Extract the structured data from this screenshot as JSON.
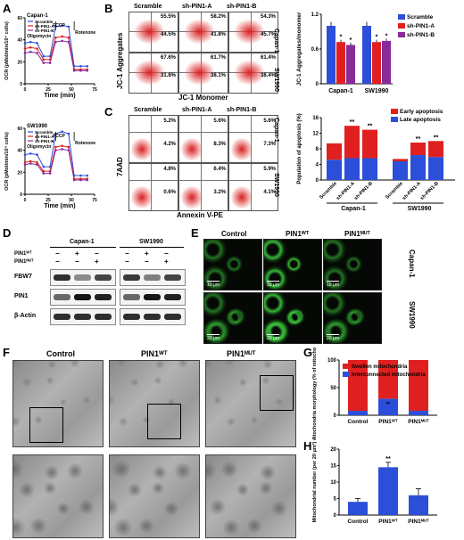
{
  "panels": [
    "A",
    "B",
    "C",
    "D",
    "E",
    "F",
    "G",
    "H"
  ],
  "panelA": {
    "top": {
      "cell": "Capan-1",
      "legend": [
        "Scramble",
        "sh-PIN1-A",
        "sh-PIN1-B"
      ],
      "ann": [
        "Oligomycin",
        "FCCP",
        "Rotenone"
      ],
      "ylabel": "OCR (pMol/min/10⁴ cells)",
      "xlabel": "Time (min)",
      "yticks": [
        "0",
        "20",
        "40",
        "60"
      ],
      "xticks": [
        "0",
        "25",
        "50",
        "75"
      ]
    },
    "bottom": {
      "cell": "SW1990",
      "legend": [
        "Scramble",
        "sh-PIN1-A",
        "sh-PIN1-B"
      ],
      "ann": [
        "Oligomycin",
        "FCCP",
        "Rotenone"
      ],
      "ylabel": "OCR (pMol/min/10⁴ cells)",
      "xlabel": "Time (min)",
      "yticks": [
        "0",
        "20",
        "40",
        "60"
      ],
      "xticks": [
        "0",
        "25",
        "50",
        "75"
      ]
    }
  },
  "panelB": {
    "cols": [
      "Scramble",
      "sh-PIN1-A",
      "sh-PIN1-B"
    ],
    "rows": [
      "Capan-1",
      "SW1990"
    ],
    "ylabel": "JC-1 Aggregates",
    "xlabel": "JC-1 Monomer",
    "values": [
      [
        "55.5%",
        "44.5%",
        "58.2%",
        "41.8%",
        "54.3%",
        "45.7%"
      ],
      [
        "67.6%",
        "31.8%",
        "61.7%",
        "38.1%",
        "61.4%",
        "38.4%"
      ]
    ]
  },
  "panelC": {
    "cols": [
      "Scramble",
      "sh-PIN1-A",
      "sh-PIN1-B"
    ],
    "rows": [
      "Capan-1",
      "SW1990"
    ],
    "ylabel": "7AAD",
    "xlabel": "Annexin V-PE",
    "values": [
      [
        "5.2%",
        "4.2%",
        "5.6%",
        "8.3%",
        "5.6%",
        "7.3%"
      ],
      [
        "4.8%",
        "0.6%",
        "6.4%",
        "3.2%",
        "5.9%",
        "4.1%"
      ]
    ]
  },
  "panelD": {
    "groups": [
      "Capan-1",
      "SW1990"
    ],
    "rowlabels": [
      "PIN1ᵂᵀ",
      "PIN1ᴹᵁᵀ"
    ],
    "signs": [
      [
        "−",
        "+",
        "−"
      ],
      [
        "−",
        "−",
        "+"
      ]
    ],
    "bands": [
      "FBW7",
      "PIN1",
      "β-Actin"
    ]
  },
  "panelE": {
    "cols": [
      "Control",
      "PIN1ᵂᵀ",
      "PIN1ᴹᵁᵀ"
    ],
    "rows": [
      "Capan-1",
      "SW1990"
    ],
    "scale": [
      "10 μm",
      "10 μm",
      "10 μm",
      "20 μm",
      "20 μm",
      "20 μm"
    ]
  },
  "panelF": {
    "cols": [
      "Control",
      "PIN1ᵂᵀ",
      "PIN1ᴹᵁᵀ"
    ]
  },
  "chart_data": [
    {
      "type": "bar",
      "panel": "B",
      "ylabel": "JC-1 Aggregates/monomer",
      "categories": [
        "Capan-1",
        "SW1990"
      ],
      "series": [
        {
          "name": "Scramble",
          "color": "#2b4fd8",
          "values": [
            1.0,
            1.0
          ],
          "errors": [
            0.07,
            0.07
          ]
        },
        {
          "name": "sh-PIN1-A",
          "color": "#e02020",
          "values": [
            0.72,
            0.72
          ],
          "errors": [
            0.04,
            0.04
          ]
        },
        {
          "name": "sh-PIN1-B",
          "color": "#8a2a9a",
          "values": [
            0.67,
            0.74
          ],
          "errors": [
            0.04,
            0.04
          ]
        }
      ],
      "ylim": [
        0,
        1.2
      ],
      "yticks": [
        "0",
        "0.6",
        "1.2"
      ],
      "annotations": [
        "*",
        "*",
        "*",
        "*"
      ]
    },
    {
      "type": "bar",
      "panel": "C",
      "stacked": true,
      "ylabel": "Population of apoptosis (%)",
      "categories": [
        "Scramble",
        "sh-PIN1-A",
        "sh-PIN1-B",
        "Scramble",
        "sh-PIN1-A",
        "sh-PIN1-B"
      ],
      "groups": [
        "Capan-1",
        "SW1990"
      ],
      "series": [
        {
          "name": "Early apoptosis",
          "color": "#e02020",
          "values": [
            4.2,
            8.3,
            7.3,
            0.6,
            3.2,
            4.1
          ]
        },
        {
          "name": "Late apoptosis",
          "color": "#2b4fd8",
          "values": [
            5.2,
            5.6,
            5.6,
            4.8,
            6.4,
            5.9
          ]
        }
      ],
      "ylim": [
        0,
        16
      ],
      "yticks": [
        "0",
        "4",
        "8",
        "12",
        "16"
      ],
      "annotations": [
        "**",
        "**",
        "**",
        "**"
      ]
    },
    {
      "type": "bar",
      "panel": "G",
      "stacked": true,
      "ylabel": "Mitochondria morphology (% of mitochondria)",
      "categories": [
        "Control",
        "PIN1ᵂᵀ",
        "PIN1ᴹᵁᵀ"
      ],
      "series": [
        {
          "name": "Interconnected mitochondria",
          "color": "#2b4fd8",
          "values": [
            8,
            30,
            8
          ]
        },
        {
          "name": "Swollen mitochondria",
          "color": "#e02020",
          "values": [
            92,
            70,
            92
          ]
        }
      ],
      "ylim": [
        0,
        100
      ],
      "yticks": [
        "0",
        "50",
        "100"
      ],
      "annotations": [
        "**"
      ]
    },
    {
      "type": "bar",
      "panel": "H",
      "ylabel": "Mitochondrial number (per 20 μm²)",
      "categories": [
        "Control",
        "PIN1ᵂᵀ",
        "PIN1ᴹᵁᵀ"
      ],
      "series": [
        {
          "name": "",
          "color": "#2b4fd8",
          "values": [
            4,
            14.5,
            6
          ],
          "errors": [
            1,
            1.5,
            2
          ]
        }
      ],
      "ylim": [
        0,
        20
      ],
      "yticks": [
        "0",
        "5",
        "10",
        "15",
        "20"
      ],
      "annotations": [
        "**"
      ]
    },
    {
      "type": "line",
      "panel": "A-top",
      "x": [
        0,
        6,
        13,
        20,
        27,
        33,
        40,
        47,
        53,
        60,
        67
      ],
      "series": [
        {
          "name": "Scramble",
          "color": "#2b4fd8",
          "values": [
            37,
            38,
            37,
            25,
            25,
            52,
            53,
            52,
            16,
            16,
            16
          ]
        },
        {
          "name": "sh-PIN1-A",
          "color": "#e02020",
          "values": [
            32,
            33,
            32,
            22,
            22,
            42,
            43,
            42,
            13,
            13,
            13
          ]
        },
        {
          "name": "sh-PIN1-B",
          "color": "#8a2a9a",
          "values": [
            28,
            29,
            28,
            19,
            19,
            38,
            39,
            38,
            12,
            12,
            12
          ]
        }
      ],
      "xlim": [
        0,
        75
      ],
      "ylim": [
        0,
        60
      ]
    },
    {
      "type": "line",
      "panel": "A-bottom",
      "x": [
        0,
        6,
        13,
        20,
        27,
        33,
        40,
        47,
        53,
        60,
        67
      ],
      "series": [
        {
          "name": "Scramble",
          "color": "#2b4fd8",
          "values": [
            36,
            37,
            36,
            25,
            25,
            55,
            57,
            55,
            17,
            17,
            17
          ]
        },
        {
          "name": "sh-PIN1-A",
          "color": "#e02020",
          "values": [
            29,
            30,
            29,
            21,
            21,
            43,
            44,
            43,
            14,
            14,
            14
          ]
        },
        {
          "name": "sh-PIN1-B",
          "color": "#8a2a9a",
          "values": [
            27,
            28,
            27,
            19,
            19,
            40,
            41,
            40,
            13,
            13,
            13
          ]
        }
      ],
      "xlim": [
        0,
        75
      ],
      "ylim": [
        0,
        60
      ]
    }
  ]
}
